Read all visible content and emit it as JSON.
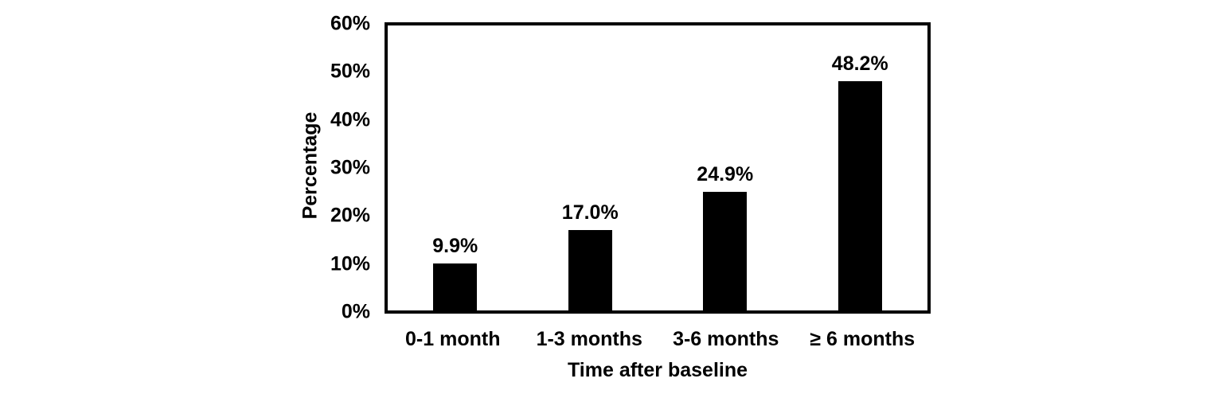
{
  "chart_data": {
    "type": "bar",
    "title": "",
    "xlabel": "Time after baseline",
    "ylabel": "Percentage",
    "categories": [
      "0-1 month",
      "1-3 months",
      "3-6 months",
      "≥ 6 months"
    ],
    "values": [
      9.9,
      17.0,
      24.9,
      48.2
    ],
    "value_labels": [
      "9.9%",
      "17.0%",
      "24.9%",
      "48.2%"
    ],
    "ylim": [
      0,
      60
    ],
    "ytick_labels": [
      "0%",
      "10%",
      "20%",
      "30%",
      "40%",
      "50%",
      "60%"
    ],
    "grid": false,
    "legend": "none",
    "bar_color": "#000000",
    "plot_border_color": "#000000",
    "text_color": "#000000",
    "background": "#ffffff"
  }
}
